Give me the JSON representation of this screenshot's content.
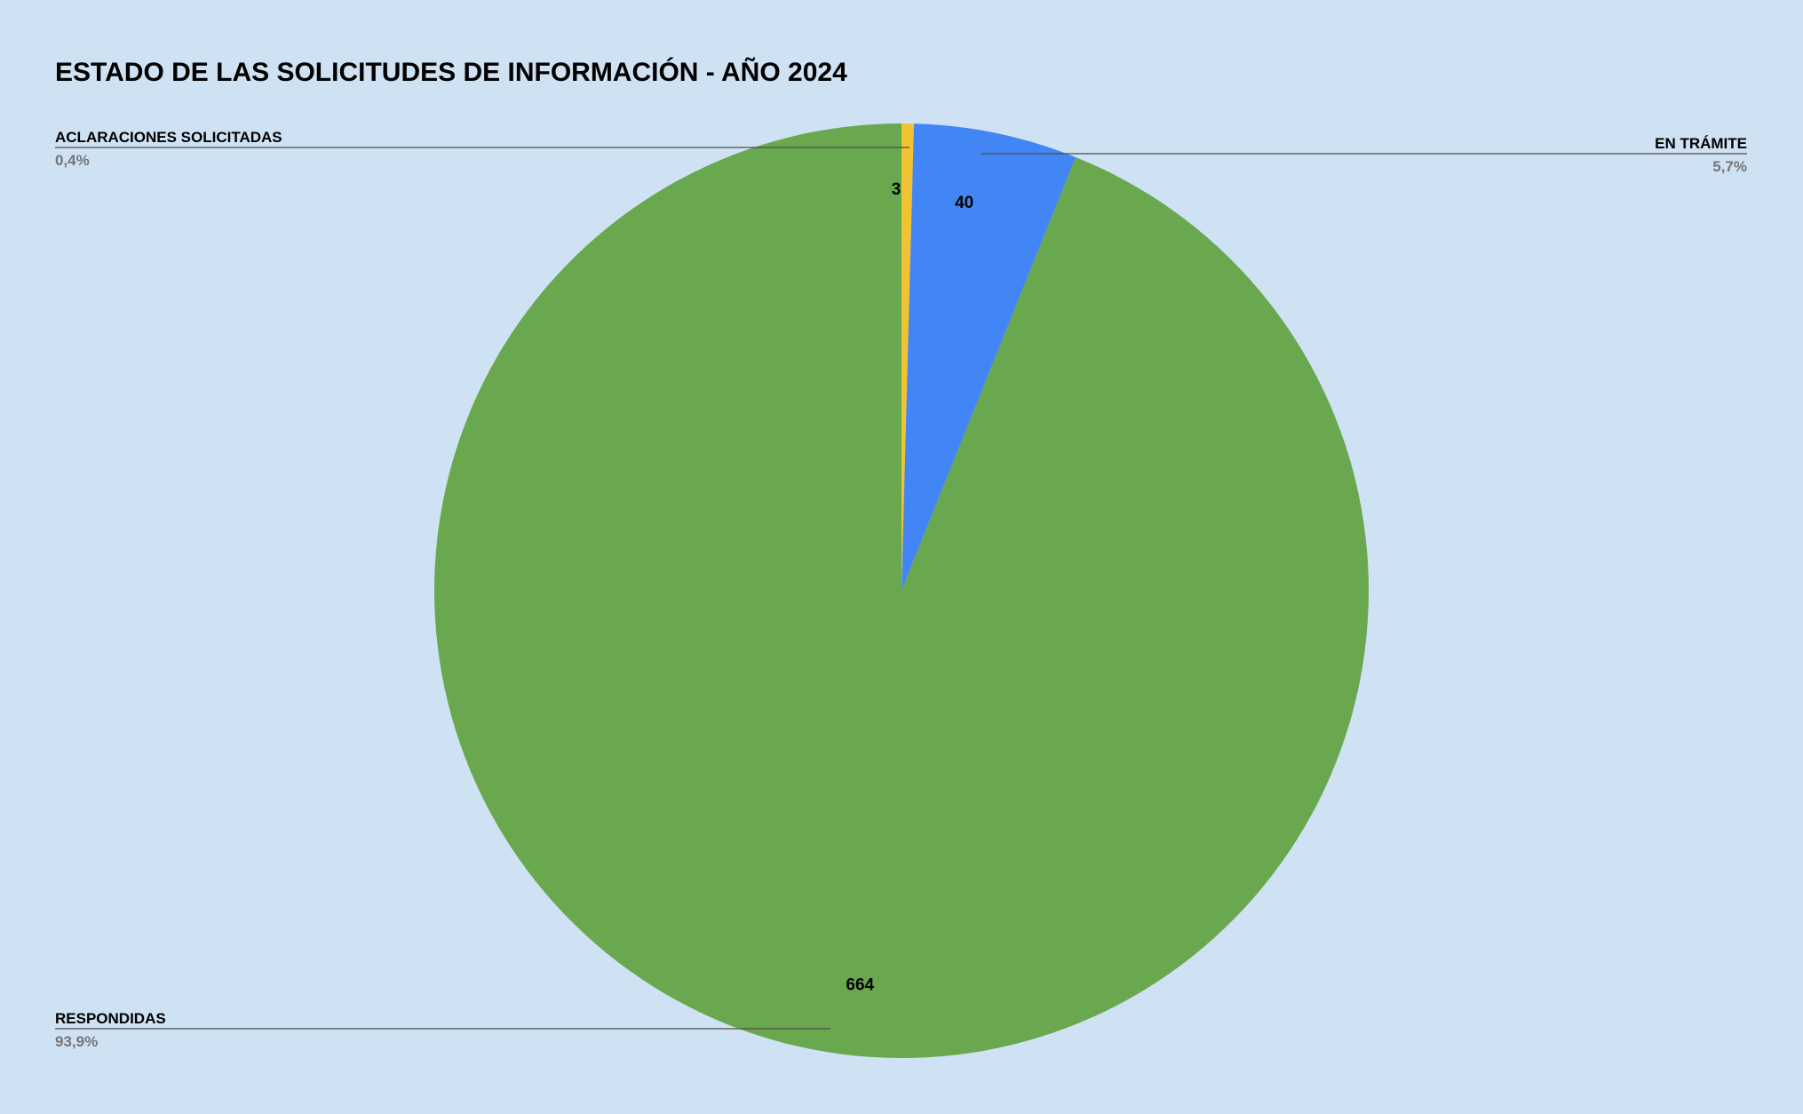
{
  "chart_data": {
    "type": "pie",
    "title": "ESTADO DE LAS SOLICITUDES DE INFORMACIÓN - AÑO 2024",
    "slices": [
      {
        "label": "ACLARACIONES SOLICITADAS",
        "value": 3,
        "value_label": "3",
        "percent_label": "0,4%",
        "color": "#f1c232",
        "callout_side": "left-top"
      },
      {
        "label": "EN TRÁMITE",
        "value": 40,
        "value_label": "40",
        "percent_label": "5,7%",
        "color": "#4285f4",
        "callout_side": "right-top"
      },
      {
        "label": "RESPONDIDAS",
        "value": 664,
        "value_label": "664",
        "percent_label": "93,9%",
        "color": "#6aa84f",
        "callout_side": "left-bottom"
      }
    ],
    "start_angle": "12 o'clock",
    "direction": "clockwise",
    "background_color": "#cfe2f3",
    "legend": "none"
  }
}
